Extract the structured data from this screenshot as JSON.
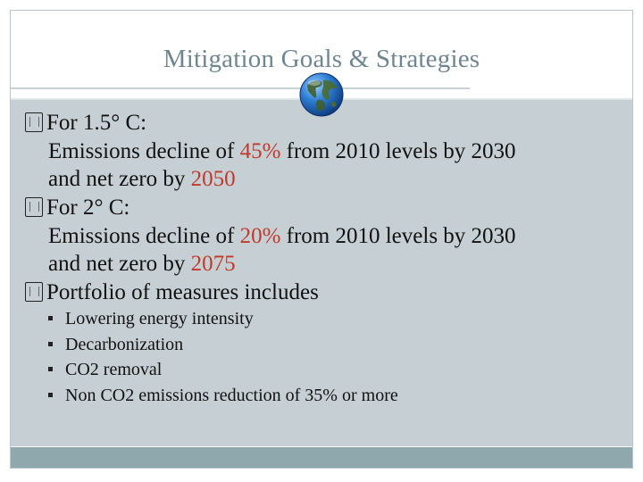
{
  "slide": {
    "title": "Mitigation Goals & Strategies",
    "bullets": [
      {
        "heading": "For 1.5° C:",
        "lines": [
          {
            "pre": "Emissions decline of ",
            "hl": "45%",
            "post": " from 2010 levels by 2030"
          },
          {
            "pre": "and net zero by ",
            "hl": "2050",
            "post": ""
          }
        ]
      },
      {
        "heading": "For 2° C:",
        "lines": [
          {
            "pre": "Emissions decline of ",
            "hl": "20%",
            "post": " from 2010 levels by 2030"
          },
          {
            "pre": "and net zero by ",
            "hl": "2075",
            "post": ""
          }
        ]
      },
      {
        "heading": "Portfolio of measures includes",
        "lines": []
      }
    ],
    "sub_bullets": [
      "Lowering energy intensity",
      "Decarbonization",
      "CO2 removal",
      "Non CO2 emissions reduction of 35% or more"
    ],
    "colors": {
      "title": "#6f8691",
      "highlight": "#c0392b",
      "content_bg": "#c6d0d4",
      "footer_bar": "#8fa8ae"
    },
    "icons": [
      "globe-icon",
      "checkbox-bullet-icon",
      "square-bullet-icon"
    ]
  }
}
